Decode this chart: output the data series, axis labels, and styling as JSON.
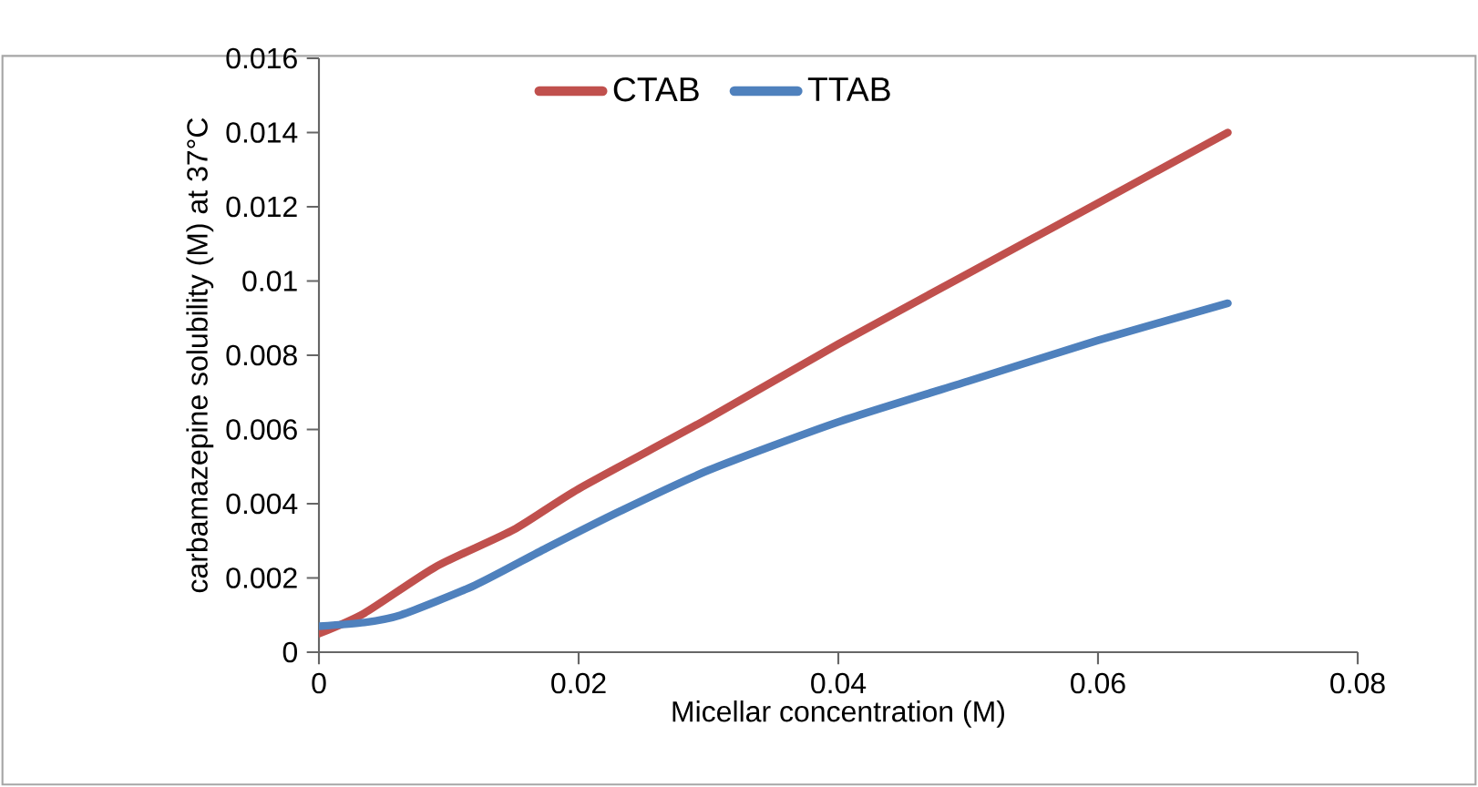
{
  "chart_data": {
    "type": "line",
    "xlabel": "Micellar concentration (M)",
    "ylabel": "carbamazepine solubility (M) at 37°C",
    "xlim": [
      0,
      0.08
    ],
    "xticks": [
      0,
      0.02,
      0.04,
      0.06,
      0.08
    ],
    "ylim": [
      0,
      0.016
    ],
    "yticks": [
      0,
      0.002,
      0.004,
      0.006,
      0.008,
      0.01,
      0.012,
      0.014,
      0.016
    ],
    "grid": false,
    "legend": "top",
    "marker": "none",
    "line_style": "solid",
    "series": [
      {
        "name": "CTAB",
        "color": "#c0504d",
        "x": [
          0,
          0.0035,
          0.009,
          0.015,
          0.02,
          0.03,
          0.04,
          0.05,
          0.06,
          0.07
        ],
        "values": [
          0.0005,
          0.00105,
          0.0023,
          0.0033,
          0.0044,
          0.0063,
          0.0083,
          0.0102,
          0.0121,
          0.014
        ]
      },
      {
        "name": "TTAB",
        "color": "#4f81bd",
        "x": [
          0,
          0.0035,
          0.0063,
          0.012,
          0.0175,
          0.0232,
          0.03,
          0.04,
          0.05,
          0.06,
          0.07
        ],
        "values": [
          0.0007,
          0.0008,
          0.001,
          0.0018,
          0.0028,
          0.0038,
          0.0049,
          0.0062,
          0.0073,
          0.0084,
          0.0094
        ]
      }
    ]
  }
}
